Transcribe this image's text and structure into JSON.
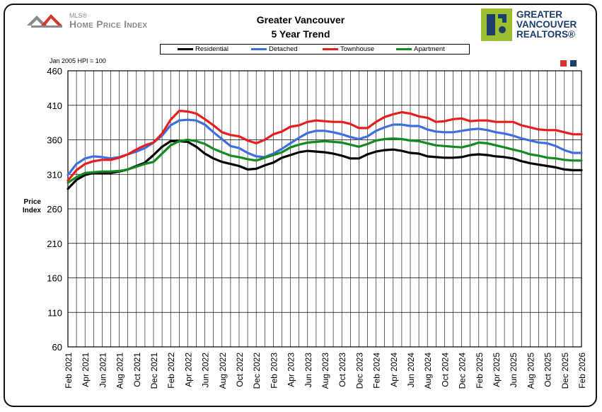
{
  "header": {
    "brand_small": "MLS®",
    "brand_name": "Home Price Index",
    "title_line1": "Greater Vancouver",
    "title_line2": "5 Year Trend",
    "org_line1": "GREATER",
    "org_line2": "VANCOUVER",
    "org_line3": "REALTORS®"
  },
  "base_note": "Jan 2005 HPI = 100",
  "colors": {
    "Residential": "#000000",
    "Detached": "#3d6fe0",
    "Townhouse": "#ea1c1c",
    "Apartment": "#138a20",
    "grid": "#000000",
    "plot_bg": "#ffffff",
    "icon_red": "#d93030",
    "icon_navy": "#1b3e6c",
    "logo_gray": "#8a8a8a",
    "logo_red": "#d03a2c",
    "gvr_green": "#9bbf2f"
  },
  "chart_data": {
    "type": "line",
    "title": "Greater Vancouver 5 Year Trend",
    "ylabel": "Price Index",
    "ylim": [
      60,
      460
    ],
    "yticks": [
      60,
      110,
      160,
      210,
      260,
      310,
      360,
      410,
      460
    ],
    "ytick_labels": [
      "60",
      "110",
      "160",
      "210",
      "260",
      "310",
      "360",
      "410",
      "460"
    ],
    "grid": true,
    "legend": "top",
    "x": [
      "Feb 2021",
      "Mar 2021",
      "Apr 2021",
      "May 2021",
      "Jun 2021",
      "Jul 2021",
      "Aug 2021",
      "Sep 2021",
      "Oct 2021",
      "Nov 2021",
      "Dec 2021",
      "Jan 2022",
      "Feb 2022",
      "Mar 2022",
      "Apr 2022",
      "May 2022",
      "Jun 2022",
      "Jul 2022",
      "Aug 2022",
      "Sep 2022",
      "Oct 2022",
      "Nov 2022",
      "Dec 2022",
      "Jan 2023",
      "Feb 2023",
      "Mar 2023",
      "Apr 2023",
      "May 2023",
      "Jun 2023",
      "Jul 2023",
      "Aug 2023",
      "Sep 2023",
      "Oct 2023",
      "Nov 2023",
      "Dec 2023",
      "Jan 2024",
      "Feb 2024",
      "Mar 2024",
      "Apr 2024",
      "May 2024",
      "Jun 2024",
      "Jul 2024",
      "Aug 2024",
      "Sep 2024",
      "Oct 2024",
      "Nov 2024",
      "Dec 2024",
      "Jan 2025",
      "Feb 2025",
      "Mar 2025",
      "Apr 2025",
      "May 2025",
      "Jun 2025",
      "Jul 2025",
      "Aug 2025",
      "Sep 2025",
      "Oct 2025",
      "Nov 2025",
      "Dec 2025",
      "Jan 2026",
      "Feb 2026"
    ],
    "xtick_labels": [
      "Feb 2021",
      "Apr 2021",
      "Jun 2021",
      "Aug 2021",
      "Oct 2021",
      "Dec 2021",
      "Feb 2022",
      "Apr 2022",
      "Jun 2022",
      "Aug 2022",
      "Oct 2022",
      "Dec 2022",
      "Feb 2023",
      "Apr 2023",
      "Jun 2023",
      "Aug 2023",
      "Oct 2023",
      "Dec 2023",
      "Feb 2024",
      "Apr 2024",
      "Jun 2024",
      "Aug 2024",
      "Oct 2024",
      "Dec 2024",
      "Feb 2025",
      "Apr 2025",
      "Jun 2025",
      "Aug 2025",
      "Oct 2025",
      "Dec 2025",
      "Feb 2026"
    ],
    "series": [
      {
        "name": "Residential",
        "values": [
          289,
          302,
          309,
          312,
          312,
          312,
          314,
          317,
          322,
          327,
          338,
          350,
          358,
          358,
          357,
          350,
          340,
          333,
          328,
          325,
          322,
          317,
          318,
          323,
          327,
          334,
          338,
          342,
          344,
          343,
          342,
          340,
          337,
          333,
          333,
          339,
          343,
          345,
          346,
          344,
          341,
          340,
          336,
          335,
          334,
          334,
          335,
          338,
          339,
          338,
          336,
          335,
          333,
          329,
          326,
          324,
          322,
          320,
          317,
          316,
          316
        ]
      },
      {
        "name": "Detached",
        "values": [
          309,
          325,
          333,
          336,
          335,
          333,
          335,
          339,
          343,
          348,
          356,
          366,
          381,
          388,
          389,
          388,
          382,
          371,
          361,
          351,
          348,
          341,
          336,
          335,
          340,
          347,
          355,
          363,
          370,
          373,
          373,
          371,
          368,
          364,
          361,
          365,
          373,
          378,
          382,
          382,
          380,
          380,
          375,
          372,
          371,
          371,
          373,
          375,
          376,
          374,
          371,
          369,
          366,
          362,
          359,
          356,
          355,
          351,
          345,
          341,
          341
        ]
      },
      {
        "name": "Townhouse",
        "values": [
          301,
          316,
          325,
          329,
          331,
          331,
          334,
          339,
          346,
          352,
          356,
          369,
          389,
          402,
          401,
          398,
          390,
          381,
          371,
          367,
          365,
          359,
          355,
          360,
          368,
          372,
          379,
          381,
          386,
          388,
          387,
          386,
          386,
          383,
          377,
          377,
          386,
          393,
          397,
          400,
          398,
          394,
          392,
          386,
          387,
          390,
          391,
          387,
          388,
          388,
          386,
          386,
          386,
          381,
          378,
          375,
          374,
          374,
          371,
          368,
          368
        ]
      },
      {
        "name": "Apartment",
        "values": [
          298,
          306,
          312,
          313,
          314,
          314,
          315,
          317,
          321,
          325,
          328,
          340,
          352,
          358,
          360,
          358,
          354,
          347,
          342,
          337,
          335,
          332,
          330,
          334,
          338,
          342,
          349,
          353,
          356,
          357,
          358,
          357,
          356,
          353,
          350,
          354,
          359,
          361,
          362,
          361,
          359,
          358,
          355,
          352,
          351,
          350,
          349,
          352,
          356,
          355,
          352,
          349,
          346,
          343,
          339,
          337,
          334,
          333,
          331,
          330,
          330
        ]
      }
    ]
  }
}
